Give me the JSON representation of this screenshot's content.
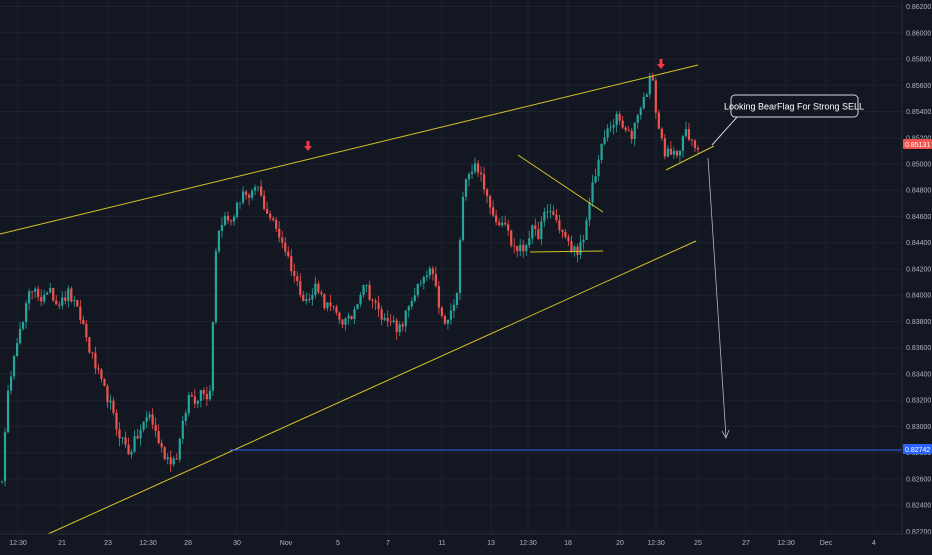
{
  "chart_data": {
    "type": "candlestick",
    "instrument_price_last": "0.85131",
    "highlighted_level": "0.82742",
    "y_axis": {
      "ticks": [
        "0.86200",
        "0.86000",
        "0.85800",
        "0.85600",
        "0.85400",
        "0.85200",
        "0.85000",
        "0.84800",
        "0.84600",
        "0.84400",
        "0.84200",
        "0.84000",
        "0.83800",
        "0.83600",
        "0.83400",
        "0.83200",
        "0.83000",
        "0.82800",
        "0.82600",
        "0.82400",
        "0.82200"
      ],
      "range": [
        0.8218,
        0.8625
      ]
    },
    "x_axis": {
      "ticks": [
        "12:30",
        "21",
        "23",
        "12:30",
        "28",
        "30",
        "Nov",
        "5",
        "7",
        "11",
        "13",
        "12:30",
        "18",
        "20",
        "12:30",
        "25",
        "27",
        "12:30",
        "Dec",
        "4"
      ]
    },
    "price_path": [
      [
        0.8262,
        0.833,
        0.8365,
        0.8375,
        0.84,
        0.8408,
        0.839,
        0.841,
        0.8395,
        0.8395,
        0.8402,
        0.839,
        0.838,
        0.836,
        0.8345,
        0.833,
        0.832,
        0.83,
        0.829,
        0.828,
        0.829,
        0.83,
        0.831,
        0.8295,
        0.828,
        0.8275
      ],
      [
        0.8275,
        0.83,
        0.8325,
        0.832,
        0.833,
        0.832,
        0.844,
        0.846,
        0.8455,
        0.8465,
        0.848,
        0.847,
        0.8485,
        0.847,
        0.846,
        0.845,
        0.844,
        0.8425,
        0.841,
        0.84,
        0.8395,
        0.841,
        0.8395,
        0.839,
        0.8385,
        0.838
      ],
      [
        0.838,
        0.8395,
        0.841,
        0.84,
        0.839,
        0.838,
        0.8385,
        0.837,
        0.838,
        0.8395,
        0.8405,
        0.841,
        0.842,
        0.84,
        0.8375,
        0.8385,
        0.84,
        0.849,
        0.8495,
        0.85,
        0.848,
        0.847,
        0.8455,
        0.846,
        0.844,
        0.8435
      ],
      [
        0.8435,
        0.845,
        0.8445,
        0.846,
        0.8465,
        0.8455,
        0.8445,
        0.8435,
        0.8435,
        0.844,
        0.848,
        0.85,
        0.852,
        0.853,
        0.8535,
        0.8525,
        0.852,
        0.854,
        0.855,
        0.857,
        0.853,
        0.851,
        0.8505,
        0.851,
        0.8525,
        0.8515,
        0.8513
      ]
    ],
    "annotations": [
      {
        "text": "Looking BearFlag For Strong SELL"
      }
    ]
  }
}
